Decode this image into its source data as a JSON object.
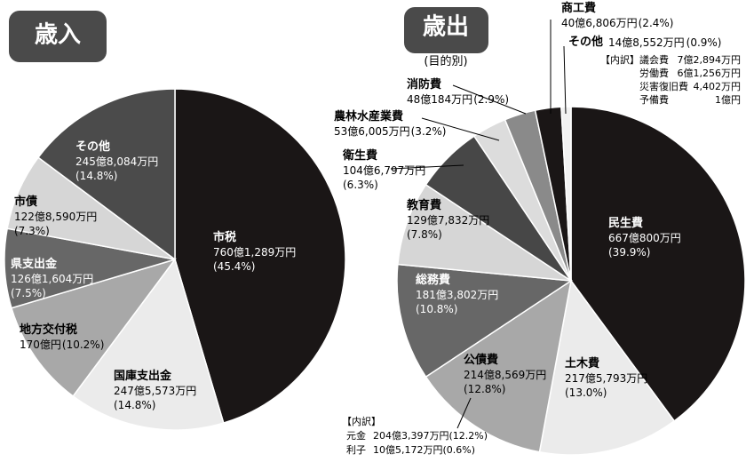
{
  "chart_data": [
    {
      "type": "pie",
      "title": "歳入",
      "categories": [
        "市税",
        "国庫支出金",
        "地方交付税",
        "県支出金",
        "市債",
        "その他"
      ],
      "amounts": [
        "760億1,289万円",
        "247億5,573万円",
        "170億円",
        "126億1,604万円",
        "122億8,590万円",
        "245億8,084万円"
      ],
      "values": [
        45.4,
        14.8,
        10.2,
        7.5,
        7.3,
        14.8
      ],
      "value_labels": [
        "(45.4%)",
        "(14.8%)",
        "(10.2%)",
        "(7.5%)",
        "(7.3%)",
        "(14.8%)"
      ],
      "colors": [
        "#1a1616",
        "#ebebeb",
        "#a8a8a8",
        "#676767",
        "#d6d6d6",
        "#4b4b4b"
      ]
    },
    {
      "type": "pie",
      "title": "歳出",
      "subtitle": "(目的別)",
      "categories": [
        "民生費",
        "土木費",
        "公債費",
        "総務費",
        "教育費",
        "衛生費",
        "農林水産業費",
        "消防費",
        "商工費",
        "その他"
      ],
      "amounts": [
        "667億800万円",
        "217億5,793万円",
        "214億8,569万円",
        "181億3,802万円",
        "129億7,832万円",
        "104億6,797万円",
        "53億6,005万円",
        "48億184万円",
        "40億6,806万円",
        "14億8,552万円"
      ],
      "values": [
        39.9,
        13.0,
        12.8,
        10.8,
        7.8,
        6.3,
        3.2,
        2.9,
        2.4,
        0.9
      ],
      "value_labels": [
        "(39.9%)",
        "(13.0%)",
        "(12.8%)",
        "(10.8%)",
        "(7.8%)",
        "(6.3%)",
        "(3.2%)",
        "(2.9%)",
        "(2.4%)",
        "(0.9%)"
      ],
      "colors": [
        "#1a1616",
        "#ebebeb",
        "#a8a8a8",
        "#676767",
        "#d6d6d6",
        "#474747",
        "#dcdcdc",
        "#8a8a8a",
        "#1a1616",
        "#f2f2f2"
      ],
      "breakdowns": [
        {
          "header": "【内訳】",
          "items": [
            {
              "label": "元金",
              "amount": "204億3,397万円(12.2%)"
            },
            {
              "label": "利子",
              "amount": "10億5,172万円(0.6%)"
            }
          ]
        },
        {
          "header": "【内訳】",
          "items": [
            {
              "label": "議会費",
              "amount": "7億2,894万円"
            },
            {
              "label": "労働費",
              "amount": "6億1,256万円"
            },
            {
              "label": "災害復旧費",
              "amount": "4,402万円"
            },
            {
              "label": "予備費",
              "amount": "1億円"
            }
          ]
        }
      ]
    }
  ]
}
